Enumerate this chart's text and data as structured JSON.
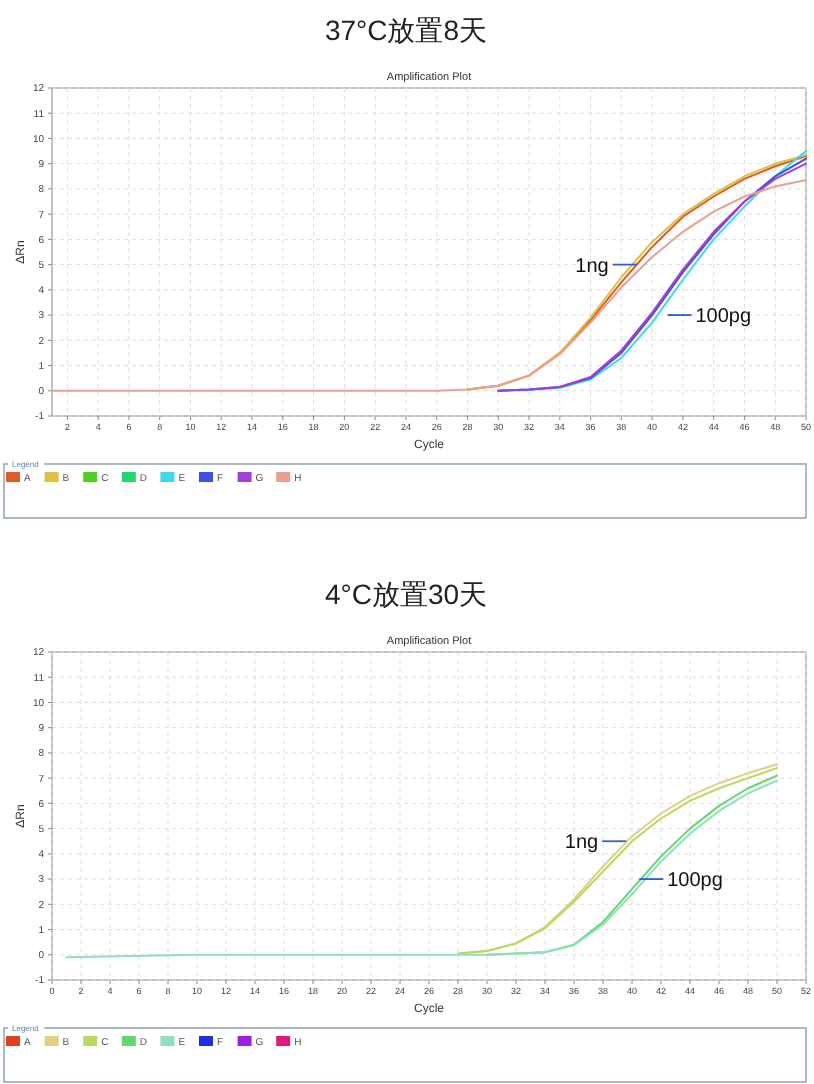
{
  "chart_data": [
    {
      "type": "line",
      "title": "37°C放置8天",
      "subtitle": "Amplification Plot",
      "xlabel": "Cycle",
      "ylabel": "ΔRn",
      "legend_title": "Legend",
      "legend": "bottom",
      "grid": true,
      "marker": "none",
      "line_style": "solid",
      "xlim": [
        1,
        50
      ],
      "ylim": [
        -1,
        12
      ],
      "xticks": [
        2,
        4,
        6,
        8,
        10,
        12,
        14,
        16,
        18,
        20,
        22,
        24,
        26,
        28,
        30,
        32,
        34,
        36,
        38,
        40,
        42,
        44,
        46,
        48,
        50
      ],
      "yticks": [
        -1,
        0,
        1,
        2,
        3,
        4,
        5,
        6,
        7,
        8,
        9,
        10,
        11,
        12
      ],
      "x": [
        1,
        10,
        20,
        26,
        28,
        30,
        32,
        34,
        36,
        38,
        40,
        42,
        44,
        46,
        48,
        50
      ],
      "series": [
        {
          "name": "A",
          "color": "#e05a2a",
          "values": [
            null,
            null,
            null,
            null,
            0.05,
            0.2,
            0.6,
            1.5,
            2.8,
            4.3,
            5.7,
            6.9,
            7.7,
            8.4,
            8.9,
            9.3
          ]
        },
        {
          "name": "B",
          "color": "#e0c040",
          "values": [
            null,
            null,
            null,
            null,
            0.05,
            0.2,
            0.6,
            1.5,
            2.9,
            4.5,
            5.9,
            7.0,
            7.8,
            8.5,
            9.0,
            9.35
          ]
        },
        {
          "name": "C",
          "color": "#50d020",
          "values": [
            null,
            null,
            null,
            null,
            null,
            null,
            null,
            null,
            null,
            null,
            null,
            null,
            null,
            null,
            null,
            null
          ]
        },
        {
          "name": "D",
          "color": "#20d870",
          "values": [
            null,
            null,
            null,
            null,
            null,
            null,
            null,
            null,
            null,
            null,
            null,
            null,
            null,
            null,
            null,
            null
          ]
        },
        {
          "name": "E",
          "color": "#40d8e8",
          "values": [
            null,
            null,
            null,
            null,
            null,
            0,
            0.03,
            0.12,
            0.45,
            1.3,
            2.7,
            4.4,
            6.0,
            7.3,
            8.5,
            9.5
          ]
        },
        {
          "name": "F",
          "color": "#4050e0",
          "values": [
            null,
            null,
            null,
            null,
            null,
            0,
            0.05,
            0.15,
            0.5,
            1.5,
            3.0,
            4.7,
            6.2,
            7.5,
            8.5,
            9.2
          ]
        },
        {
          "name": "G",
          "color": "#a040d8",
          "values": [
            null,
            null,
            null,
            null,
            null,
            0,
            0.05,
            0.15,
            0.55,
            1.6,
            3.1,
            4.8,
            6.3,
            7.5,
            8.4,
            9.0
          ]
        },
        {
          "name": "H",
          "color": "#e8a090",
          "values": [
            0,
            0,
            0,
            0,
            0.05,
            0.2,
            0.6,
            1.45,
            2.7,
            4.1,
            5.3,
            6.3,
            7.1,
            7.7,
            8.1,
            8.35
          ]
        }
      ],
      "annotations": [
        {
          "text": "1ng",
          "x": 39,
          "y": 5
        },
        {
          "text": "100pg",
          "x": 41,
          "y": 3
        }
      ]
    },
    {
      "type": "line",
      "title": "4°C放置30天",
      "subtitle": "Amplification Plot",
      "xlabel": "Cycle",
      "ylabel": "ΔRn",
      "legend_title": "Legend",
      "legend": "bottom",
      "grid": true,
      "marker": "none",
      "line_style": "solid",
      "xlim": [
        0,
        52
      ],
      "ylim": [
        -1,
        12
      ],
      "xticks": [
        0,
        2,
        4,
        6,
        8,
        10,
        12,
        14,
        16,
        18,
        20,
        22,
        24,
        26,
        28,
        30,
        32,
        34,
        36,
        38,
        40,
        42,
        44,
        46,
        48,
        50,
        52
      ],
      "yticks": [
        -1,
        0,
        1,
        2,
        3,
        4,
        5,
        6,
        7,
        8,
        9,
        10,
        11,
        12
      ],
      "x": [
        1,
        10,
        20,
        26,
        28,
        30,
        32,
        34,
        36,
        38,
        40,
        42,
        44,
        46,
        48,
        50
      ],
      "series": [
        {
          "name": "A",
          "color": "#e04020",
          "values": [
            null,
            null,
            null,
            null,
            null,
            null,
            null,
            null,
            null,
            null,
            null,
            null,
            null,
            null,
            null,
            null
          ]
        },
        {
          "name": "B",
          "color": "#e0d080",
          "values": [
            null,
            null,
            null,
            null,
            0.05,
            0.15,
            0.45,
            1.1,
            2.2,
            3.5,
            4.7,
            5.6,
            6.3,
            6.8,
            7.2,
            7.55
          ]
        },
        {
          "name": "C",
          "color": "#b8d860",
          "values": [
            null,
            null,
            null,
            null,
            0.05,
            0.15,
            0.45,
            1.05,
            2.1,
            3.3,
            4.5,
            5.4,
            6.1,
            6.6,
            7.0,
            7.4
          ]
        },
        {
          "name": "D",
          "color": "#60d870",
          "values": [
            null,
            null,
            null,
            null,
            null,
            0,
            0.05,
            0.1,
            0.4,
            1.3,
            2.6,
            3.9,
            5.0,
            5.9,
            6.6,
            7.1
          ]
        },
        {
          "name": "E",
          "color": "#90e0c0",
          "values": [
            -0.1,
            0,
            0,
            0,
            0,
            0,
            0.04,
            0.1,
            0.38,
            1.2,
            2.4,
            3.7,
            4.8,
            5.7,
            6.4,
            6.9
          ]
        },
        {
          "name": "F",
          "color": "#2030e0",
          "values": [
            null,
            null,
            null,
            null,
            null,
            null,
            null,
            null,
            null,
            null,
            null,
            null,
            null,
            null,
            null,
            null
          ]
        },
        {
          "name": "G",
          "color": "#a020e0",
          "values": [
            null,
            null,
            null,
            null,
            null,
            null,
            null,
            null,
            null,
            null,
            null,
            null,
            null,
            null,
            null,
            null
          ]
        },
        {
          "name": "H",
          "color": "#e01880",
          "values": [
            null,
            null,
            null,
            null,
            null,
            null,
            null,
            null,
            null,
            null,
            null,
            null,
            null,
            null,
            null,
            null
          ]
        }
      ],
      "annotations": [
        {
          "text": "1ng",
          "x": 39.6,
          "y": 4.5
        },
        {
          "text": "100pg",
          "x": 40.5,
          "y": 3
        }
      ]
    }
  ]
}
